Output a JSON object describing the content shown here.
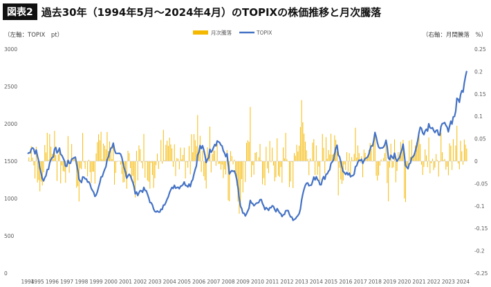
{
  "header": {
    "badge": "図表2",
    "title": "過去30年（1994年5月〜2024年4月）のTOPIXの株価推移と月次騰落"
  },
  "colors": {
    "bar": "#F5B800",
    "line": "#4472C4"
  },
  "chart_data": {
    "type": "bar+line",
    "left_axis_label": "（左軸：TOPIX　pt）",
    "right_axis_label": "（右軸：月間騰落　%）",
    "legend": [
      "月次騰落",
      "TOPIX"
    ],
    "y_left": {
      "min": 0,
      "max": 3000,
      "ticks": [
        "3000",
        "2500",
        "2000",
        "1500",
        "1000",
        "500",
        "0"
      ]
    },
    "y_right": {
      "min": -0.25,
      "max": 0.25,
      "ticks": [
        "0.25",
        "0.2",
        "0.15",
        "0.1",
        "0.05",
        "0",
        "-0.05",
        "-0.1",
        "-0.15",
        "-0.2",
        "-0.25"
      ]
    },
    "x_ticks": [
      "1994",
      "1995",
      "1996",
      "1997",
      "1998",
      "1999",
      "2000",
      "2001",
      "2002",
      "2003",
      "2004",
      "2005",
      "2006",
      "2007",
      "2008",
      "2009",
      "2010",
      "2011",
      "2012",
      "2013",
      "2014",
      "2015",
      "2016",
      "2017",
      "2018",
      "2019",
      "2020",
      "2021",
      "2022",
      "2023",
      "2024"
    ],
    "topix_series": [
      [
        1994.4,
        1600
      ],
      [
        1994.6,
        1700
      ],
      [
        1994.9,
        1620
      ],
      [
        1995.1,
        1500
      ],
      [
        1995.3,
        1250
      ],
      [
        1995.5,
        1280
      ],
      [
        1995.8,
        1450
      ],
      [
        1996.0,
        1580
      ],
      [
        1996.3,
        1650
      ],
      [
        1996.6,
        1620
      ],
      [
        1996.9,
        1450
      ],
      [
        1997.2,
        1480
      ],
      [
        1997.5,
        1580
      ],
      [
        1997.7,
        1450
      ],
      [
        1997.9,
        1200
      ],
      [
        1998.2,
        1300
      ],
      [
        1998.4,
        1230
      ],
      [
        1998.7,
        1150
      ],
      [
        1998.9,
        1050
      ],
      [
        1999.1,
        1100
      ],
      [
        1999.4,
        1300
      ],
      [
        1999.7,
        1450
      ],
      [
        2000.0,
        1700
      ],
      [
        2000.2,
        1720
      ],
      [
        2000.4,
        1580
      ],
      [
        2000.7,
        1550
      ],
      [
        2000.9,
        1400
      ],
      [
        2001.1,
        1300
      ],
      [
        2001.3,
        1350
      ],
      [
        2001.5,
        1200
      ],
      [
        2001.7,
        1050
      ],
      [
        2002.0,
        1100
      ],
      [
        2002.3,
        1120
      ],
      [
        2002.5,
        1050
      ],
      [
        2002.8,
        900
      ],
      [
        2003.0,
        850
      ],
      [
        2003.3,
        800
      ],
      [
        2003.6,
        900
      ],
      [
        2003.9,
        1050
      ],
      [
        2004.1,
        1100
      ],
      [
        2004.3,
        1180
      ],
      [
        2004.6,
        1150
      ],
      [
        2004.9,
        1200
      ],
      [
        2005.1,
        1200
      ],
      [
        2005.4,
        1180
      ],
      [
        2005.7,
        1350
      ],
      [
        2005.9,
        1550
      ],
      [
        2006.1,
        1700
      ],
      [
        2006.3,
        1650
      ],
      [
        2006.5,
        1500
      ],
      [
        2006.8,
        1650
      ],
      [
        2007.1,
        1750
      ],
      [
        2007.4,
        1770
      ],
      [
        2007.6,
        1650
      ],
      [
        2007.9,
        1580
      ],
      [
        2008.1,
        1300
      ],
      [
        2008.3,
        1380
      ],
      [
        2008.6,
        1250
      ],
      [
        2008.8,
        900
      ],
      [
        2009.0,
        800
      ],
      [
        2009.2,
        750
      ],
      [
        2009.5,
        950
      ],
      [
        2009.8,
        900
      ],
      [
        2010.0,
        940
      ],
      [
        2010.3,
        980
      ],
      [
        2010.5,
        850
      ],
      [
        2010.8,
        860
      ],
      [
        2011.0,
        920
      ],
      [
        2011.2,
        850
      ],
      [
        2011.5,
        830
      ],
      [
        2011.7,
        760
      ],
      [
        2012.0,
        850
      ],
      [
        2012.2,
        770
      ],
      [
        2012.4,
        720
      ],
      [
        2012.7,
        740
      ],
      [
        2012.9,
        860
      ],
      [
        2013.1,
        1100
      ],
      [
        2013.4,
        1250
      ],
      [
        2013.6,
        1150
      ],
      [
        2013.8,
        1250
      ],
      [
        2014.0,
        1300
      ],
      [
        2014.3,
        1200
      ],
      [
        2014.6,
        1300
      ],
      [
        2014.9,
        1400
      ],
      [
        2015.1,
        1500
      ],
      [
        2015.4,
        1680
      ],
      [
        2015.6,
        1500
      ],
      [
        2015.8,
        1400
      ],
      [
        2016.0,
        1350
      ],
      [
        2016.2,
        1300
      ],
      [
        2016.5,
        1320
      ],
      [
        2016.8,
        1450
      ],
      [
        2017.0,
        1530
      ],
      [
        2017.3,
        1480
      ],
      [
        2017.6,
        1620
      ],
      [
        2017.9,
        1780
      ],
      [
        2018.0,
        1850
      ],
      [
        2018.3,
        1650
      ],
      [
        2018.5,
        1720
      ],
      [
        2018.8,
        1740
      ],
      [
        2018.9,
        1500
      ],
      [
        2019.1,
        1550
      ],
      [
        2019.3,
        1580
      ],
      [
        2019.5,
        1520
      ],
      [
        2019.7,
        1600
      ],
      [
        2019.9,
        1700
      ],
      [
        2020.1,
        1400
      ],
      [
        2020.3,
        1450
      ],
      [
        2020.5,
        1550
      ],
      [
        2020.8,
        1650
      ],
      [
        2020.9,
        1800
      ],
      [
        2021.1,
        1950
      ],
      [
        2021.4,
        1900
      ],
      [
        2021.7,
        2000
      ],
      [
        2021.9,
        1980
      ],
      [
        2022.1,
        1850
      ],
      [
        2022.4,
        1900
      ],
      [
        2022.6,
        1950
      ],
      [
        2022.8,
        2000
      ],
      [
        2022.9,
        1900
      ],
      [
        2023.1,
        2000
      ],
      [
        2023.4,
        2100
      ],
      [
        2023.6,
        2300
      ],
      [
        2023.8,
        2350
      ],
      [
        2023.9,
        2400
      ],
      [
        2024.1,
        2600
      ],
      [
        2024.2,
        2750
      ],
      [
        2024.3,
        2720
      ]
    ]
  }
}
